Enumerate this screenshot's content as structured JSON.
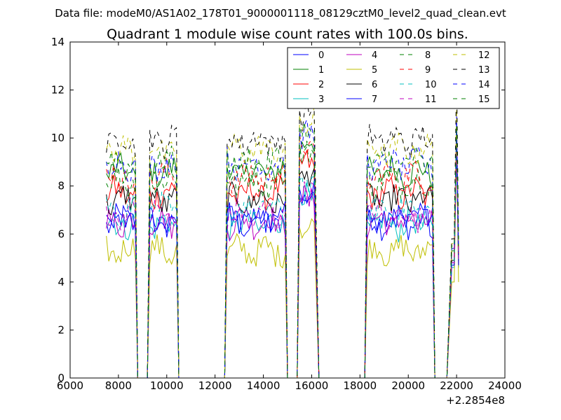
{
  "figure": {
    "suptitle": "Data file: modeM0/AS1A02_178T01_9000001118_08129cztM0_level2_quad_clean.evt"
  },
  "chart_data": {
    "type": "line",
    "title": "Quadrant 1 module wise count rates with 100.0s bins.",
    "xlabel": "",
    "ylabel": "",
    "x_offset_label": "+2.2854e8",
    "xlim": [
      6000,
      24000
    ],
    "ylim": [
      0,
      14
    ],
    "xticks": [
      6000,
      8000,
      10000,
      12000,
      14000,
      16000,
      18000,
      20000,
      22000,
      24000
    ],
    "yticks": [
      0,
      2,
      4,
      6,
      8,
      10,
      12,
      14
    ],
    "grid": false,
    "legend_position": "top-right",
    "legend_columns": 4,
    "segments": [
      {
        "start": 7500,
        "end": 8700,
        "drop_to": 8800
      },
      {
        "start": 9300,
        "end": 10400,
        "rise_from": 9200,
        "drop_to": 10500
      },
      {
        "start": 12500,
        "end": 14900,
        "rise_from": 12400,
        "drop_to": 15000
      },
      {
        "start": 15500,
        "end": 16100,
        "rise_from": 15400,
        "drop_to": 16300
      },
      {
        "start": 18300,
        "end": 21000,
        "rise_from": 18200,
        "drop_to": 21100
      },
      {
        "start": 21800,
        "end": 22000,
        "rise_from": 21600
      }
    ],
    "series": [
      {
        "name": "0",
        "color": "#0000ff",
        "dash": "solid",
        "level": 6.5,
        "short_level": 4.8,
        "peak": 10.0
      },
      {
        "name": "1",
        "color": "#008000",
        "dash": "solid",
        "level": 8.6,
        "short_level": 5.3,
        "peak": 10.2
      },
      {
        "name": "2",
        "color": "#ff0000",
        "dash": "solid",
        "level": 7.7,
        "short_level": 4.9,
        "peak": 9.7
      },
      {
        "name": "3",
        "color": "#00bfbf",
        "dash": "solid",
        "level": 6.4,
        "short_level": 4.6,
        "peak": 9.5
      },
      {
        "name": "4",
        "color": "#bf00bf",
        "dash": "solid",
        "level": 6.5,
        "short_level": 4.7,
        "peak": 9.6
      },
      {
        "name": "5",
        "color": "#bfbf00",
        "dash": "solid",
        "level": 5.3,
        "short_level": 4.0,
        "peak": 9.6
      },
      {
        "name": "6",
        "color": "#000000",
        "dash": "solid",
        "level": 7.4,
        "short_level": 4.9,
        "peak": 10.2
      },
      {
        "name": "7",
        "color": "#0000ff",
        "dash": "solid",
        "level": 6.6,
        "short_level": 4.7,
        "peak": 9.7
      },
      {
        "name": "8",
        "color": "#008000",
        "dash": "dashed",
        "level": 8.2,
        "short_level": 5.2,
        "peak": 10.3
      },
      {
        "name": "9",
        "color": "#ff0000",
        "dash": "dashed",
        "level": 8.4,
        "short_level": 5.2,
        "peak": 10.3
      },
      {
        "name": "10",
        "color": "#00bfbf",
        "dash": "dashed",
        "level": 7.0,
        "short_level": 4.8,
        "peak": 9.9
      },
      {
        "name": "11",
        "color": "#bf00bf",
        "dash": "dashed",
        "level": 6.8,
        "short_level": 4.8,
        "peak": 9.8
      },
      {
        "name": "12",
        "color": "#bfbf00",
        "dash": "dashed",
        "level": 9.5,
        "short_level": 5.6,
        "peak": 11.2
      },
      {
        "name": "13",
        "color": "#000000",
        "dash": "dashed",
        "level": 9.9,
        "short_level": 5.8,
        "peak": 12.8
      },
      {
        "name": "14",
        "color": "#0000ff",
        "dash": "dashed",
        "level": 8.9,
        "short_level": 5.4,
        "peak": 10.9
      },
      {
        "name": "15",
        "color": "#008000",
        "dash": "dashed",
        "level": 9.0,
        "short_level": 5.5,
        "peak": 10.5
      }
    ]
  }
}
